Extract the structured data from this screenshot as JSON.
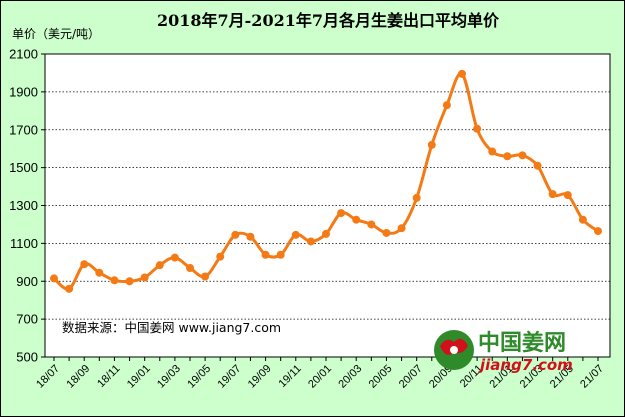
{
  "chart_data": {
    "type": "line",
    "title": "2018年7月-2021年7月各月生姜出口平均单价",
    "ylabel": "单价（美元/吨）",
    "xlabel": "",
    "ylim": [
      500,
      2100
    ],
    "yticks": [
      500,
      700,
      900,
      1100,
      1300,
      1500,
      1700,
      1900,
      2100
    ],
    "grid": "horizontal-dotted",
    "series": [
      {
        "color": "#f47a16",
        "values": [
          915,
          860,
          990,
          945,
          905,
          900,
          920,
          985,
          1025,
          970,
          925,
          1030,
          1145,
          1135,
          1040,
          1040,
          1145,
          1110,
          1150,
          1260,
          1225,
          1200,
          1155,
          1180,
          1340,
          1620,
          1830,
          1995,
          1705,
          1585,
          1560,
          1565,
          1510,
          1360,
          1355,
          1225,
          1165
        ]
      }
    ],
    "x": [
      "18/07",
      "18/08",
      "18/09",
      "18/10",
      "18/11",
      "18/12",
      "19/01",
      "19/02",
      "19/03",
      "19/04",
      "19/05",
      "19/06",
      "19/07",
      "19/08",
      "19/09",
      "19/10",
      "19/11",
      "19/12",
      "20/01",
      "20/02",
      "20/03",
      "20/04",
      "20/05",
      "20/06",
      "20/07",
      "20/08",
      "20/09",
      "20/10",
      "20/11",
      "20/12",
      "21/01",
      "21/02",
      "21/03",
      "21/04",
      "21/05",
      "21/06",
      "21/07"
    ],
    "xtick_labels": [
      "18/07",
      "18/09",
      "18/11",
      "19/01",
      "19/03",
      "19/05",
      "19/07",
      "19/09",
      "19/11",
      "20/01",
      "20/03",
      "20/05",
      "20/07",
      "20/09",
      "20/11",
      "21/01",
      "21/03",
      "21/05",
      "21/07"
    ]
  },
  "watermark": {
    "source_text": "数据来源：中国姜网 www.jiang7.com",
    "logo_cn": "中国姜网",
    "logo_url": "jiang7.com"
  },
  "colors": {
    "background": "#ccffcc",
    "plot_background": "#ffffff",
    "line": "#f47a16",
    "logo_green": "#2f8a2a",
    "logo_red": "#d0101a"
  }
}
